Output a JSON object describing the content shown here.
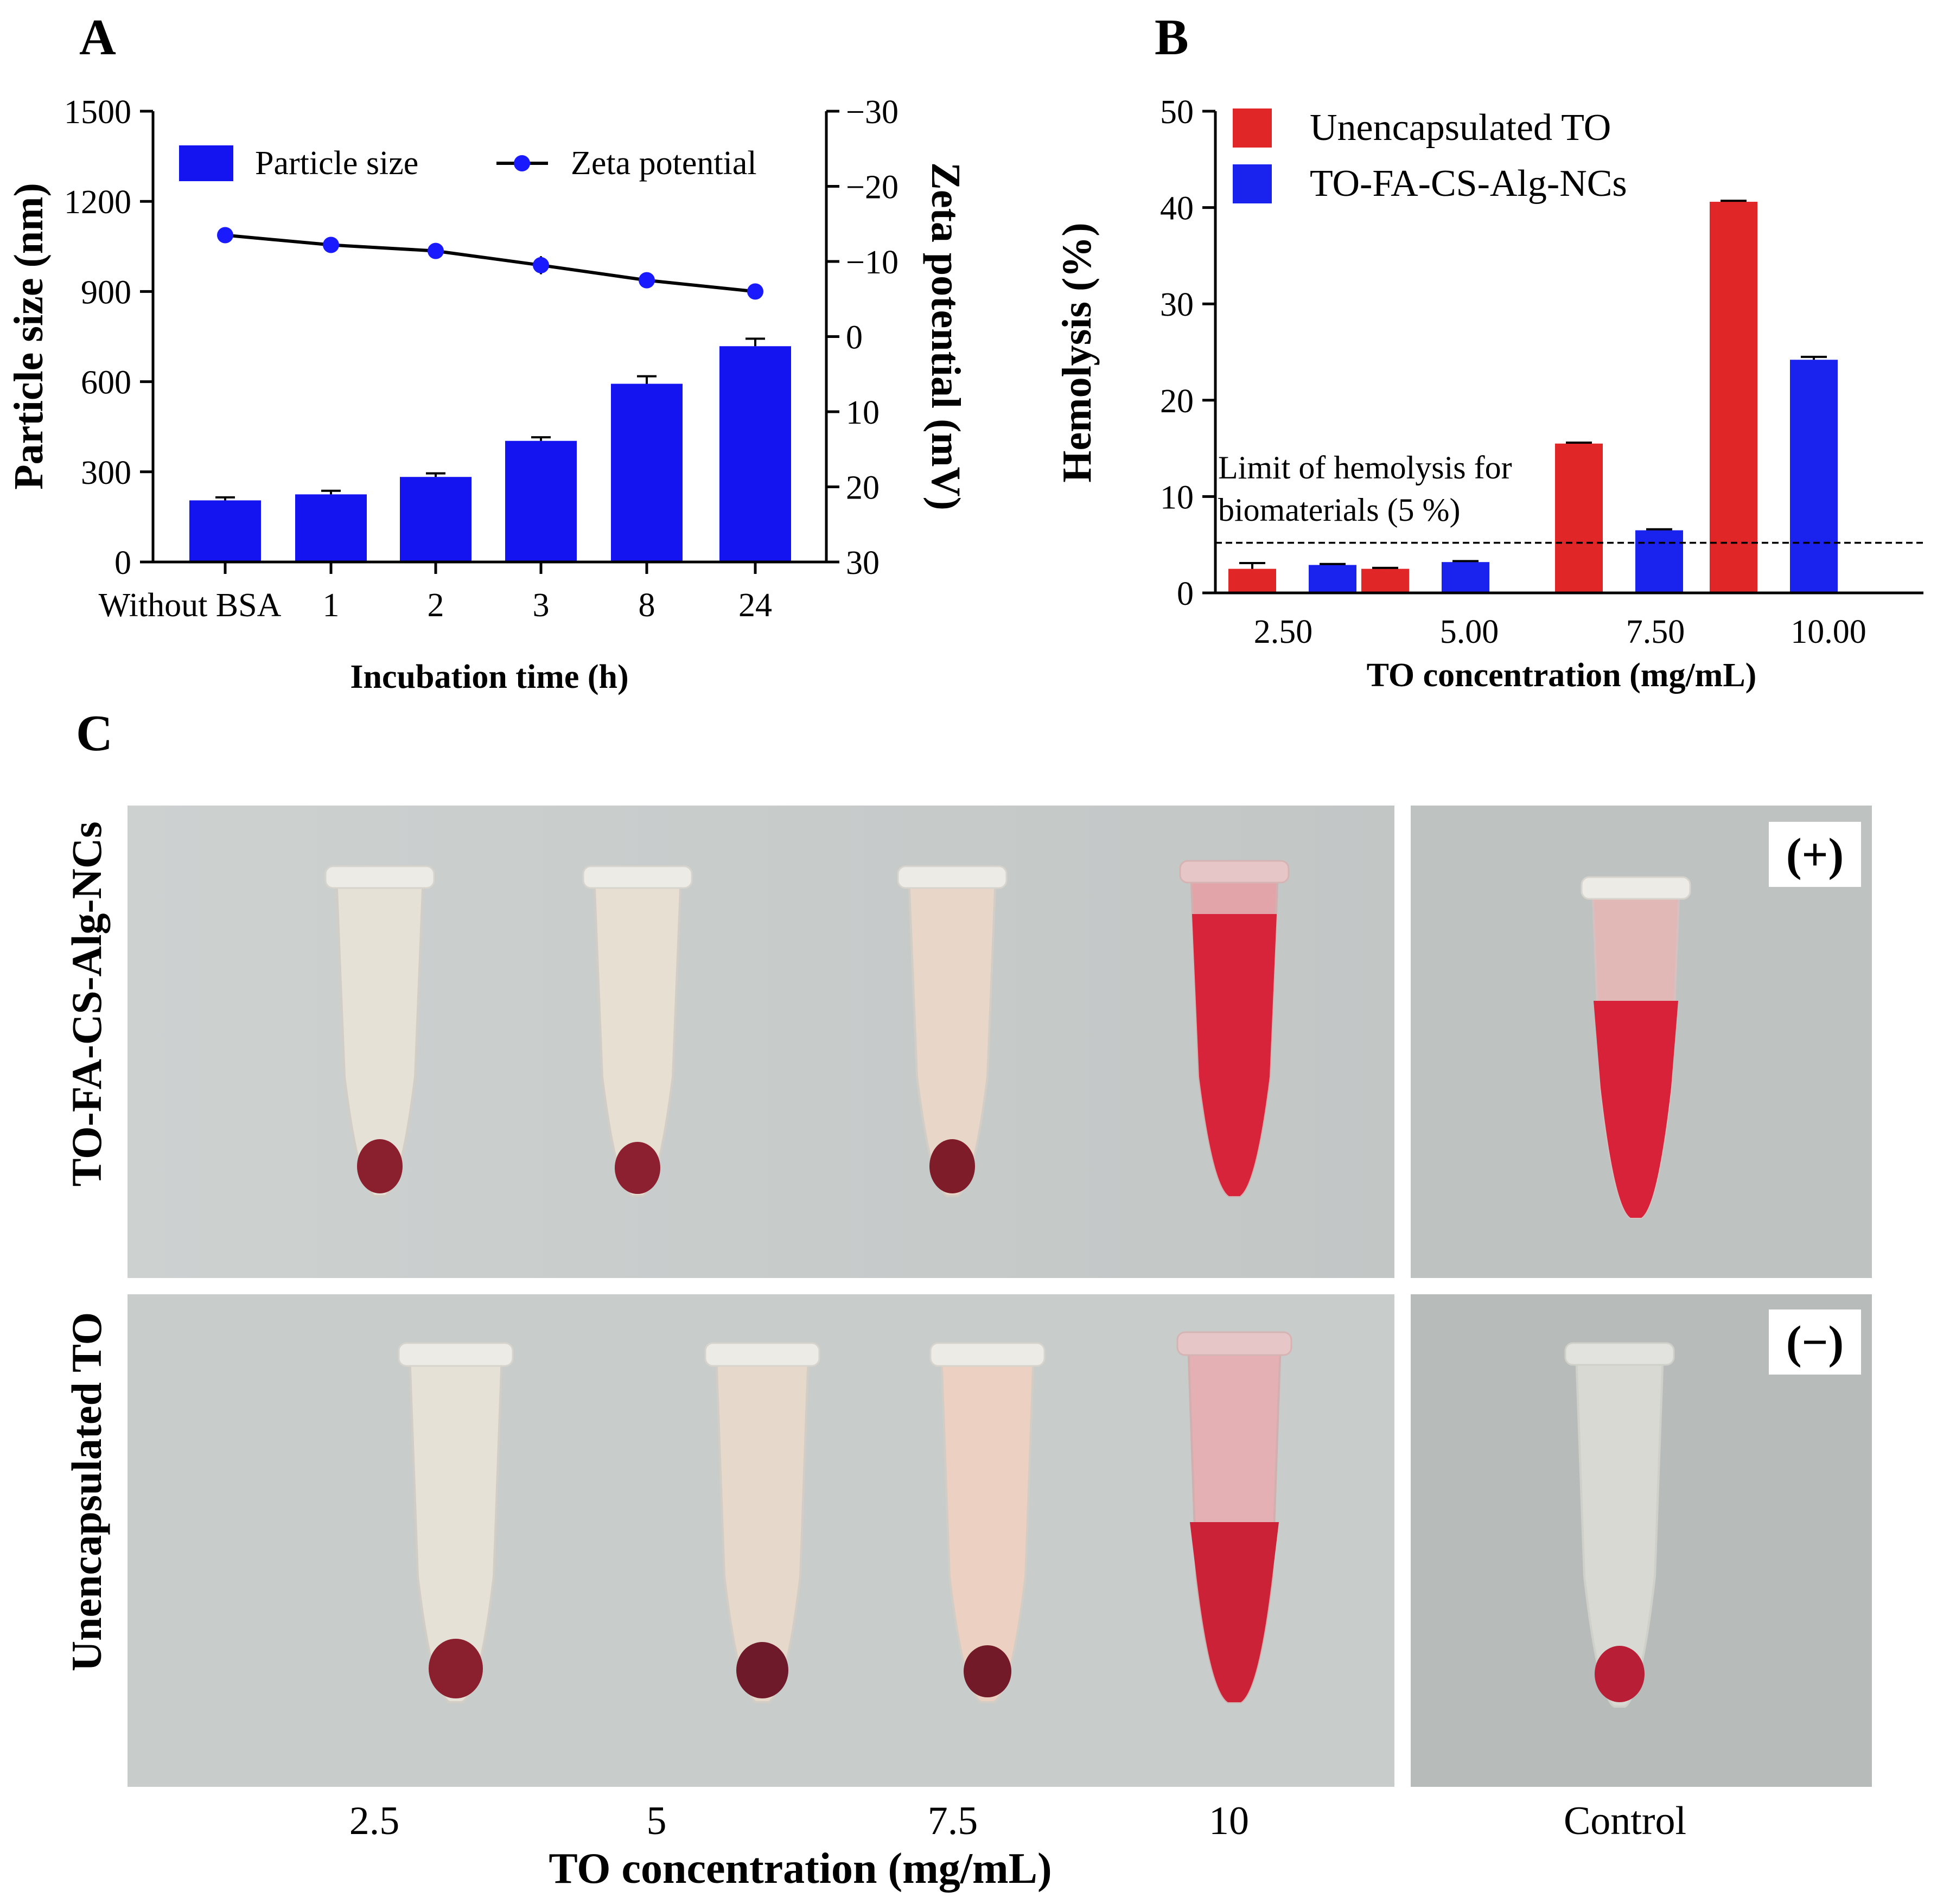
{
  "panels": {
    "a": {
      "letter": "A",
      "chart_data": {
        "type": "bar",
        "title": "",
        "xlabel": "Incubation time (h)",
        "ylabel": "Particle size (nm)",
        "y2label": "Zeta potential (mV)",
        "categories": [
          "Without BSA",
          "1",
          "2",
          "3",
          "8",
          "24"
        ],
        "ylim": [
          0,
          1500
        ],
        "yticks": [
          0,
          300,
          600,
          900,
          1200,
          1500
        ],
        "y2lim": [
          30,
          -30
        ],
        "y2ticks": [
          -30,
          -20,
          -10,
          0,
          10,
          20,
          30
        ],
        "y2ticklabels": [
          "−30",
          "−20",
          "−10",
          "0",
          "10",
          "20",
          "30"
        ],
        "series": [
          {
            "name": "Particle size",
            "kind": "bar",
            "axis": "left",
            "color": "#1414f0",
            "values": [
              205,
              225,
              283,
              403,
              593,
              718
            ],
            "errors": [
              10,
              12,
              12,
              12,
              25,
              25
            ]
          },
          {
            "name": "Zeta potential",
            "kind": "line",
            "axis": "right",
            "color": "#1a1aff",
            "values": [
              -13.5,
              -12.2,
              -11.4,
              -9.5,
              -7.5,
              -6.0
            ],
            "errors": [
              0.4,
              0.5,
              0.5,
              1.2,
              0.5,
              0.8
            ]
          }
        ],
        "legend": [
          "Particle size",
          "Zeta potential"
        ]
      }
    },
    "b": {
      "letter": "B",
      "chart_data": {
        "type": "bar",
        "title": "",
        "xlabel": "TO concentration (mg/mL)",
        "ylabel": "Hemolysis (%)",
        "categories": [
          "2.50",
          "5.00",
          "7.50",
          "10.00"
        ],
        "ylim": [
          0,
          50
        ],
        "yticks": [
          0,
          10,
          20,
          30,
          40,
          50
        ],
        "series": [
          {
            "name": "Unencapsulated TO",
            "color": "#e02626",
            "values": [
              2.5,
              2.5,
              15.5,
              40.6
            ],
            "errors": [
              0.6,
              0.1,
              0.1,
              0.1
            ]
          },
          {
            "name": "TO-FA-CS-Alg-NCs",
            "color": "#1a22ee",
            "values": [
              2.9,
              3.2,
              6.5,
              24.2
            ],
            "errors": [
              0.1,
              0.1,
              0.1,
              0.3
            ]
          }
        ],
        "threshold": {
          "value": 5.2,
          "label_line1": "Limit of hemolysis for",
          "label_line2": "biomaterials (5 %)"
        }
      }
    },
    "c": {
      "letter": "C",
      "row_labels": [
        "TO-FA-CS-Alg-NCs",
        "Unencapsulated TO"
      ],
      "column_labels": [
        "2.5",
        "5",
        "7.5",
        "10",
        "Control"
      ],
      "xlabel": "TO concentration (mg/mL)",
      "positive_label": "(+)",
      "negative_label": "(−)"
    }
  }
}
